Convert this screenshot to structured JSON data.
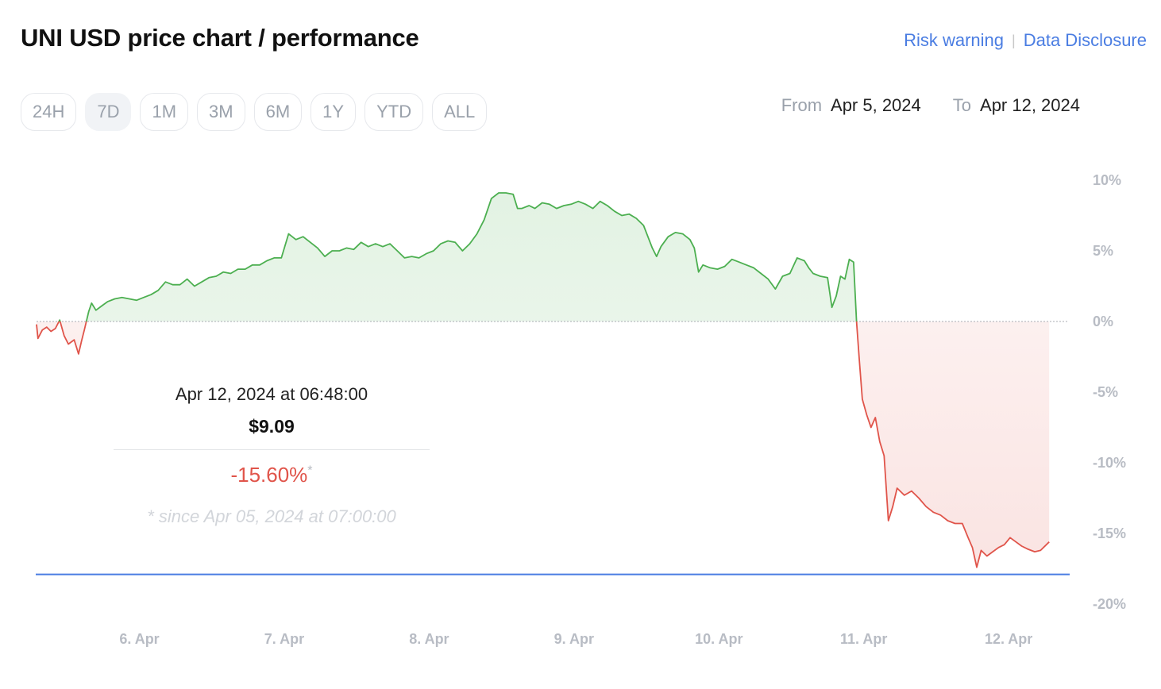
{
  "header": {
    "title": "UNI USD price chart / performance",
    "risk_warning": "Risk warning",
    "separator": "|",
    "data_disclosure": "Data Disclosure"
  },
  "ranges": [
    "24H",
    "7D",
    "1M",
    "3M",
    "6M",
    "1Y",
    "YTD",
    "ALL"
  ],
  "active_range": "7D",
  "date_range": {
    "from_label": "From",
    "from_value": "Apr 5, 2024",
    "to_label": "To",
    "to_value": "Apr 12, 2024"
  },
  "tooltip": {
    "datetime": "Apr 12, 2024 at 06:48:00",
    "price": "$9.09",
    "change": "-15.60%",
    "asterisk": "*",
    "since": "* since Apr 05, 2024 at 07:00:00"
  },
  "colors": {
    "positive": "#4caf50",
    "negative": "#e0544a",
    "crosshair": "#4a7de2",
    "link": "#4a7de2"
  },
  "chart_data": {
    "type": "area",
    "title": "",
    "xlabel": "",
    "ylabel": "",
    "x_tick_labels": [
      "6. Apr",
      "7. Apr",
      "8. Apr",
      "9. Apr",
      "10. Apr",
      "11. Apr",
      "12. Apr"
    ],
    "y_tick_labels": [
      "10%",
      "5%",
      "0%",
      "-5%",
      "-10%",
      "-15%",
      "-20%"
    ],
    "y_ticks": [
      10,
      5,
      0,
      -5,
      -10,
      -15,
      -20
    ],
    "ylim": [
      -20,
      10
    ],
    "baseline": 0,
    "x_unit": "days since Apr 5, 2024 00:00",
    "series": [
      {
        "values": [
          [
            5.29,
            -0.2
          ],
          [
            5.3,
            -1.2
          ],
          [
            5.33,
            -0.6
          ],
          [
            5.36,
            -0.4
          ],
          [
            5.39,
            -0.7
          ],
          [
            5.42,
            -0.5
          ],
          [
            5.45,
            0.1
          ],
          [
            5.48,
            -1.0
          ],
          [
            5.51,
            -1.6
          ],
          [
            5.55,
            -1.3
          ],
          [
            5.58,
            -2.3
          ],
          [
            5.6,
            -1.4
          ],
          [
            5.62,
            -0.6
          ],
          [
            5.65,
            0.7
          ],
          [
            5.67,
            1.3
          ],
          [
            5.7,
            0.8
          ],
          [
            5.74,
            1.1
          ],
          [
            5.78,
            1.4
          ],
          [
            5.83,
            1.6
          ],
          [
            5.88,
            1.7
          ],
          [
            5.93,
            1.6
          ],
          [
            5.98,
            1.5
          ],
          [
            6.03,
            1.7
          ],
          [
            6.08,
            1.9
          ],
          [
            6.13,
            2.2
          ],
          [
            6.18,
            2.8
          ],
          [
            6.23,
            2.6
          ],
          [
            6.28,
            2.6
          ],
          [
            6.33,
            3.0
          ],
          [
            6.38,
            2.5
          ],
          [
            6.43,
            2.8
          ],
          [
            6.48,
            3.1
          ],
          [
            6.53,
            3.2
          ],
          [
            6.58,
            3.5
          ],
          [
            6.63,
            3.4
          ],
          [
            6.68,
            3.7
          ],
          [
            6.73,
            3.7
          ],
          [
            6.78,
            4.0
          ],
          [
            6.83,
            4.0
          ],
          [
            6.88,
            4.3
          ],
          [
            6.93,
            4.5
          ],
          [
            6.98,
            4.5
          ],
          [
            7.03,
            6.2
          ],
          [
            7.08,
            5.8
          ],
          [
            7.13,
            6.0
          ],
          [
            7.18,
            5.6
          ],
          [
            7.23,
            5.2
          ],
          [
            7.28,
            4.6
          ],
          [
            7.33,
            5.0
          ],
          [
            7.38,
            5.0
          ],
          [
            7.43,
            5.2
          ],
          [
            7.48,
            5.1
          ],
          [
            7.53,
            5.6
          ],
          [
            7.58,
            5.3
          ],
          [
            7.63,
            5.5
          ],
          [
            7.68,
            5.3
          ],
          [
            7.73,
            5.5
          ],
          [
            7.78,
            5.0
          ],
          [
            7.83,
            4.5
          ],
          [
            7.88,
            4.6
          ],
          [
            7.93,
            4.5
          ],
          [
            7.98,
            4.8
          ],
          [
            8.03,
            5.0
          ],
          [
            8.08,
            5.5
          ],
          [
            8.13,
            5.7
          ],
          [
            8.18,
            5.6
          ],
          [
            8.23,
            5.0
          ],
          [
            8.28,
            5.5
          ],
          [
            8.33,
            6.2
          ],
          [
            8.38,
            7.2
          ],
          [
            8.43,
            8.7
          ],
          [
            8.48,
            9.1
          ],
          [
            8.53,
            9.1
          ],
          [
            8.58,
            9.0
          ],
          [
            8.61,
            8.0
          ],
          [
            8.64,
            8.0
          ],
          [
            8.69,
            8.2
          ],
          [
            8.73,
            8.0
          ],
          [
            8.78,
            8.4
          ],
          [
            8.83,
            8.3
          ],
          [
            8.88,
            8.0
          ],
          [
            8.93,
            8.2
          ],
          [
            8.98,
            8.3
          ],
          [
            9.03,
            8.5
          ],
          [
            9.08,
            8.3
          ],
          [
            9.13,
            8.0
          ],
          [
            9.18,
            8.5
          ],
          [
            9.23,
            8.2
          ],
          [
            9.28,
            7.8
          ],
          [
            9.33,
            7.5
          ],
          [
            9.38,
            7.6
          ],
          [
            9.43,
            7.3
          ],
          [
            9.48,
            6.8
          ],
          [
            9.51,
            6.0
          ],
          [
            9.54,
            5.2
          ],
          [
            9.57,
            4.6
          ],
          [
            9.6,
            5.3
          ],
          [
            9.65,
            6.0
          ],
          [
            9.7,
            6.3
          ],
          [
            9.75,
            6.2
          ],
          [
            9.8,
            5.8
          ],
          [
            9.83,
            5.2
          ],
          [
            9.86,
            3.5
          ],
          [
            9.89,
            4.0
          ],
          [
            9.94,
            3.8
          ],
          [
            9.99,
            3.7
          ],
          [
            10.04,
            3.9
          ],
          [
            10.09,
            4.4
          ],
          [
            10.14,
            4.2
          ],
          [
            10.19,
            4.0
          ],
          [
            10.24,
            3.8
          ],
          [
            10.29,
            3.4
          ],
          [
            10.34,
            3.0
          ],
          [
            10.39,
            2.3
          ],
          [
            10.44,
            3.2
          ],
          [
            10.49,
            3.4
          ],
          [
            10.54,
            4.5
          ],
          [
            10.59,
            4.3
          ],
          [
            10.62,
            3.8
          ],
          [
            10.65,
            3.4
          ],
          [
            10.7,
            3.2
          ],
          [
            10.75,
            3.1
          ],
          [
            10.78,
            1.0
          ],
          [
            10.81,
            1.8
          ],
          [
            10.84,
            3.2
          ],
          [
            10.87,
            3.0
          ],
          [
            10.9,
            4.4
          ],
          [
            10.93,
            4.2
          ],
          [
            10.95,
            0.0
          ],
          [
            10.97,
            -2.8
          ],
          [
            10.99,
            -5.5
          ],
          [
            11.02,
            -6.6
          ],
          [
            11.05,
            -7.5
          ],
          [
            11.08,
            -6.8
          ],
          [
            11.11,
            -8.5
          ],
          [
            11.14,
            -9.5
          ],
          [
            11.17,
            -14.1
          ],
          [
            11.2,
            -13.1
          ],
          [
            11.23,
            -11.8
          ],
          [
            11.28,
            -12.3
          ],
          [
            11.33,
            -12.0
          ],
          [
            11.38,
            -12.5
          ],
          [
            11.43,
            -13.1
          ],
          [
            11.48,
            -13.5
          ],
          [
            11.53,
            -13.7
          ],
          [
            11.58,
            -14.1
          ],
          [
            11.63,
            -14.3
          ],
          [
            11.68,
            -14.3
          ],
          [
            11.72,
            -15.3
          ],
          [
            11.75,
            -16.0
          ],
          [
            11.78,
            -17.4
          ],
          [
            11.81,
            -16.2
          ],
          [
            11.85,
            -16.6
          ],
          [
            11.89,
            -16.3
          ],
          [
            11.93,
            -16.0
          ],
          [
            11.97,
            -15.8
          ],
          [
            12.01,
            -15.3
          ],
          [
            12.05,
            -15.6
          ],
          [
            12.09,
            -15.9
          ],
          [
            12.13,
            -16.1
          ],
          [
            12.18,
            -16.3
          ],
          [
            12.22,
            -16.2
          ],
          [
            12.28,
            -15.6
          ]
        ]
      }
    ],
    "x_ticks": [
      6,
      7,
      8,
      9,
      10,
      11,
      12
    ],
    "xlim": [
      5.29,
      12.35
    ]
  }
}
